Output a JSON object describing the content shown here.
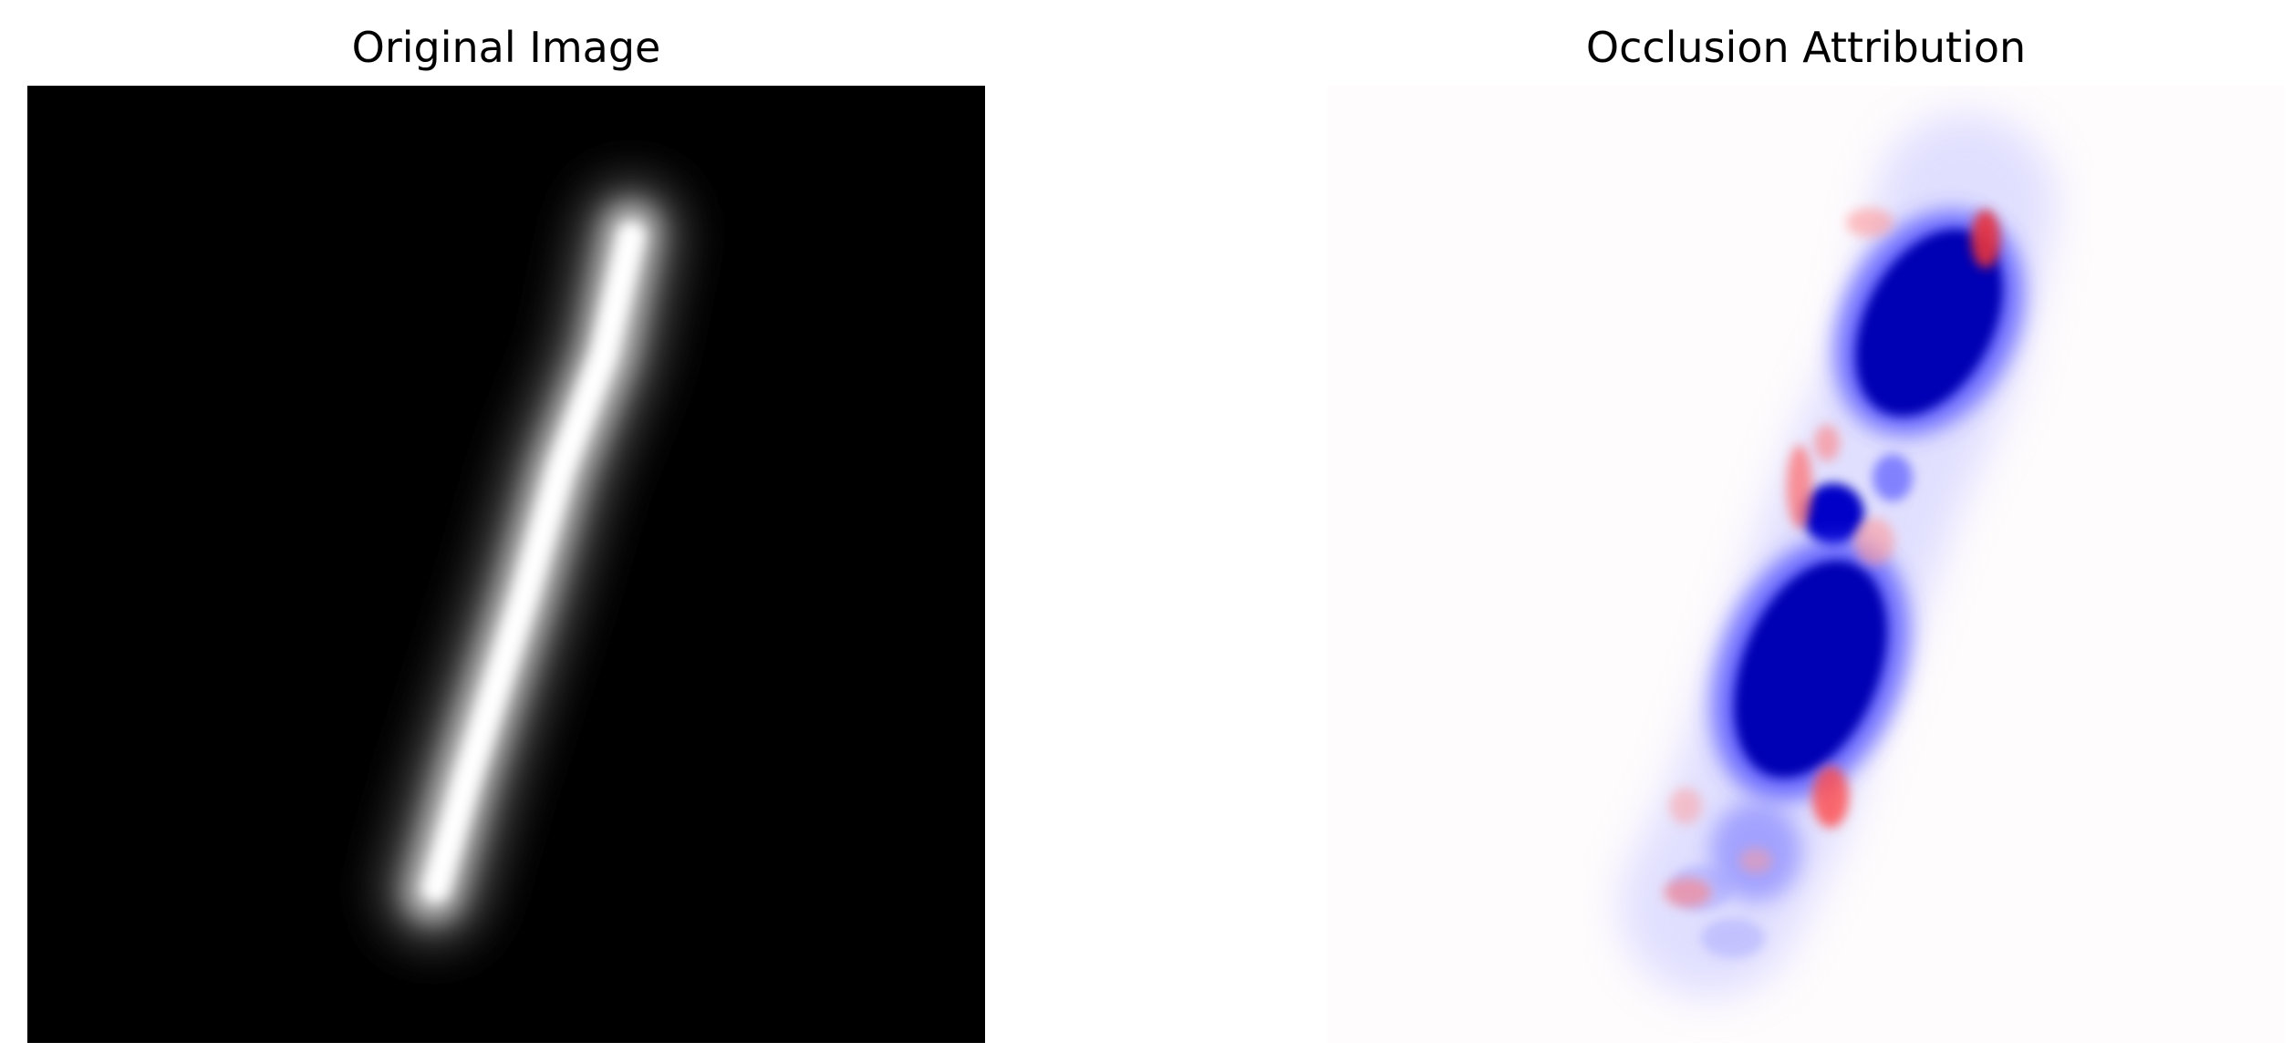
{
  "figure": {
    "panels": [
      {
        "title": "Original Image",
        "kind": "grayscale-digit",
        "colormap": "gray",
        "background_color": "#000000",
        "stroke_color": "#ffffff"
      },
      {
        "title": "Occlusion Attribution",
        "kind": "attribution-heatmap",
        "colormap": "bwr",
        "background_color": "#fffcfd",
        "positive_color": "#e8323a",
        "negative_color": "#0000b4"
      }
    ]
  }
}
